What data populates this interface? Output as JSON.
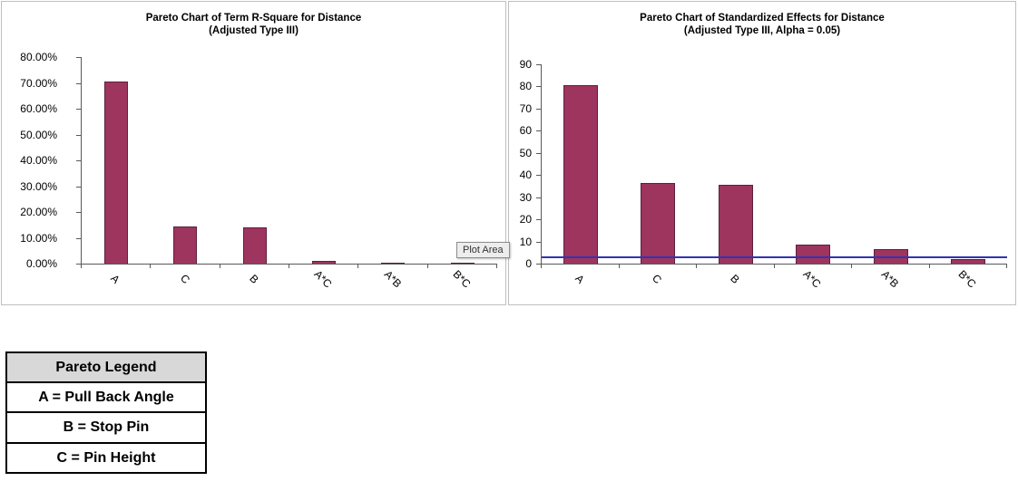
{
  "tooltip": {
    "label": "Plot Area"
  },
  "chart_data": [
    {
      "type": "bar",
      "title": "Pareto Chart of Term R-Square for Distance",
      "subtitle": "(Adjusted Type III)",
      "categories": [
        "A",
        "C",
        "B",
        "A*C",
        "A*B",
        "B*C"
      ],
      "values": [
        70.5,
        14.4,
        14.0,
        0.9,
        0.05,
        0.02
      ],
      "value_unit": "percent",
      "ylim": [
        0,
        80
      ],
      "y_ticks": [
        "80.00%",
        "70.00%",
        "60.00%",
        "50.00%",
        "40.00%",
        "30.00%",
        "20.00%",
        "10.00%",
        "0.00%"
      ],
      "bar_color": "#9E355E",
      "grid": "off",
      "legend_position": "none"
    },
    {
      "type": "bar",
      "title": "Pareto Chart of Standardized Effects for Distance",
      "subtitle": "(Adjusted Type III, Alpha = 0.05)",
      "categories": [
        "A",
        "C",
        "B",
        "A*C",
        "A*B",
        "B*C"
      ],
      "values": [
        80.5,
        36.5,
        35.8,
        8.6,
        6.5,
        2.2
      ],
      "ylim": [
        0,
        90
      ],
      "y_ticks": [
        "90",
        "80",
        "70",
        "60",
        "50",
        "40",
        "30",
        "20",
        "10",
        "0"
      ],
      "ref_line": {
        "value": 2.6,
        "color": "#3333B2"
      },
      "bar_color": "#9E355E",
      "grid": "off",
      "legend_position": "none"
    }
  ],
  "legend": {
    "title": "Pareto Legend",
    "rows": [
      "A = Pull Back Angle",
      "B = Stop Pin",
      "C = Pin Height"
    ]
  }
}
